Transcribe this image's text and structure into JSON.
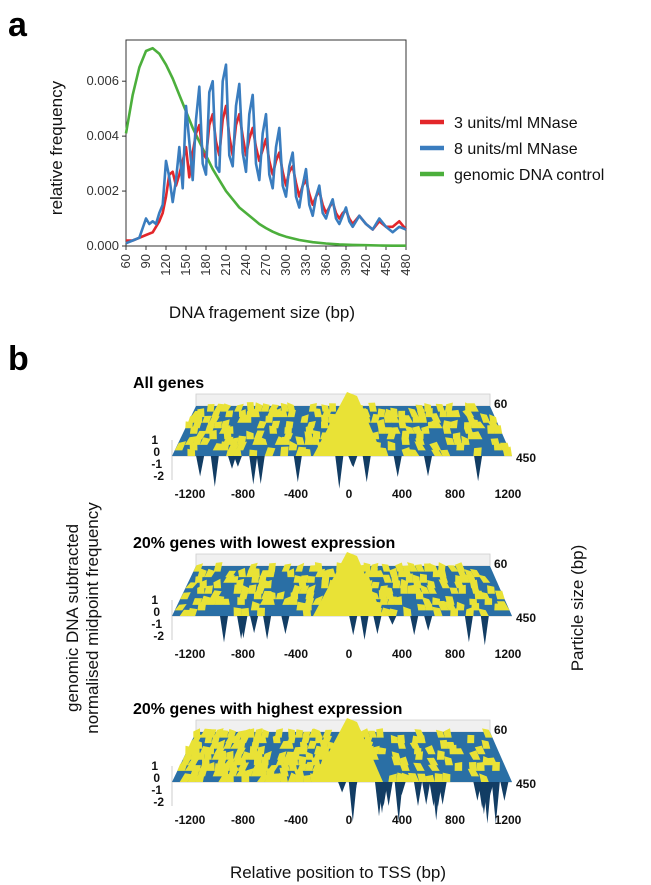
{
  "panel_a": {
    "letter": "a",
    "chart_data": {
      "type": "line",
      "xlabel": "DNA fragement size (bp)",
      "ylabel": "relative frequency",
      "xlim": [
        60,
        480
      ],
      "ylim": [
        0,
        0.0075
      ],
      "x_ticks": [
        "60",
        "90",
        "120",
        "150",
        "180",
        "210",
        "240",
        "270",
        "300",
        "330",
        "360",
        "390",
        "420",
        "450",
        "480"
      ],
      "y_ticks": [
        "0.000",
        "0.002",
        "0.004",
        "0.006"
      ],
      "legend_position": "right",
      "series": [
        {
          "name": "3 units/ml MNase",
          "color": "#e3262a",
          "x": [
            60,
            70,
            80,
            90,
            100,
            105,
            110,
            115,
            120,
            125,
            130,
            135,
            140,
            145,
            150,
            155,
            160,
            165,
            170,
            175,
            180,
            185,
            190,
            195,
            200,
            205,
            210,
            215,
            220,
            225,
            230,
            235,
            240,
            245,
            250,
            255,
            260,
            265,
            270,
            275,
            280,
            285,
            290,
            295,
            300,
            305,
            310,
            315,
            320,
            325,
            330,
            335,
            340,
            345,
            350,
            355,
            360,
            365,
            370,
            375,
            380,
            385,
            390,
            395,
            400,
            410,
            420,
            430,
            440,
            450,
            460,
            470,
            480
          ],
          "y": [
            0.0002,
            0.0002,
            0.0003,
            0.0004,
            0.0005,
            0.0007,
            0.0009,
            0.0012,
            0.0018,
            0.0026,
            0.0027,
            0.0022,
            0.0026,
            0.0031,
            0.0036,
            0.0025,
            0.0034,
            0.0041,
            0.0044,
            0.0034,
            0.0032,
            0.0044,
            0.0048,
            0.0038,
            0.0033,
            0.0046,
            0.0051,
            0.004,
            0.0033,
            0.0044,
            0.0048,
            0.004,
            0.0033,
            0.0039,
            0.0043,
            0.0036,
            0.0031,
            0.0035,
            0.0039,
            0.0031,
            0.0026,
            0.0031,
            0.0034,
            0.0027,
            0.0022,
            0.0027,
            0.0029,
            0.0023,
            0.0018,
            0.0022,
            0.0024,
            0.0019,
            0.0015,
            0.0018,
            0.002,
            0.0015,
            0.0012,
            0.0014,
            0.0016,
            0.0012,
            0.001,
            0.0012,
            0.0013,
            0.001,
            0.0008,
            0.0011,
            0.0008,
            0.0006,
            0.0009,
            0.0007,
            0.0007,
            0.0009,
            0.0006
          ]
        },
        {
          "name": "8 units/ml MNase",
          "color": "#3a7dbf",
          "x": [
            60,
            70,
            80,
            90,
            95,
            100,
            105,
            110,
            115,
            120,
            125,
            130,
            135,
            140,
            145,
            150,
            155,
            160,
            165,
            170,
            175,
            180,
            185,
            190,
            195,
            200,
            205,
            210,
            215,
            220,
            225,
            230,
            235,
            240,
            245,
            250,
            255,
            260,
            265,
            270,
            275,
            280,
            285,
            290,
            295,
            300,
            305,
            310,
            315,
            320,
            325,
            330,
            335,
            340,
            345,
            350,
            355,
            360,
            365,
            370,
            375,
            380,
            385,
            390,
            395,
            400,
            410,
            420,
            430,
            440,
            450,
            460,
            470,
            480
          ],
          "y": [
            0.0001,
            0.0002,
            0.0003,
            0.001,
            0.0008,
            0.0009,
            0.0008,
            0.0012,
            0.0015,
            0.0031,
            0.0025,
            0.0016,
            0.0024,
            0.0036,
            0.0021,
            0.0051,
            0.0038,
            0.0024,
            0.0046,
            0.0058,
            0.003,
            0.0026,
            0.0056,
            0.006,
            0.0029,
            0.0027,
            0.006,
            0.0066,
            0.0033,
            0.0029,
            0.0051,
            0.0059,
            0.0034,
            0.0027,
            0.0048,
            0.0055,
            0.003,
            0.0024,
            0.0041,
            0.0048,
            0.0026,
            0.0021,
            0.0036,
            0.0043,
            0.0022,
            0.0018,
            0.0029,
            0.0034,
            0.0018,
            0.0014,
            0.0022,
            0.0028,
            0.0015,
            0.0011,
            0.0018,
            0.0022,
            0.0012,
            0.001,
            0.0014,
            0.0017,
            0.001,
            0.0008,
            0.0011,
            0.0014,
            0.0009,
            0.0007,
            0.0011,
            0.0008,
            0.0006,
            0.001,
            0.0007,
            0.0005,
            0.0007,
            0.0006
          ]
        },
        {
          "name": "genomic DNA control",
          "color": "#4caf3c",
          "x": [
            60,
            70,
            80,
            90,
            100,
            110,
            120,
            130,
            140,
            150,
            160,
            170,
            180,
            190,
            200,
            210,
            220,
            230,
            240,
            250,
            260,
            270,
            280,
            290,
            300,
            320,
            340,
            360,
            380,
            400,
            420,
            440,
            460,
            480
          ],
          "y": [
            0.0041,
            0.0055,
            0.0065,
            0.0071,
            0.0072,
            0.007,
            0.0066,
            0.0061,
            0.0055,
            0.0049,
            0.0043,
            0.0038,
            0.0033,
            0.0028,
            0.0024,
            0.002,
            0.0017,
            0.0014,
            0.0012,
            0.001,
            0.0008,
            0.00065,
            0.00052,
            0.00042,
            0.00034,
            0.00022,
            0.00014,
            9e-05,
            6e-05,
            4e-05,
            3e-05,
            2e-05,
            1e-05,
            1e-05
          ]
        }
      ]
    }
  },
  "panel_b": {
    "letter": "b",
    "y_label_line1": "genomic DNA subtracted",
    "y_label_line2": "normalised midpoint frequency",
    "right_label": "Particle size (bp)",
    "x_label": "Relative position to TSS (bp)",
    "surfaces": [
      {
        "title": "All genes",
        "x_ticks": [
          "-1200",
          "-800",
          "-400",
          "0",
          "400",
          "800",
          "1200"
        ],
        "z_ticks": [
          "1",
          "0",
          "-1",
          "-2"
        ],
        "size_top": "60",
        "size_bottom": "450"
      },
      {
        "title": "20% genes with lowest expression",
        "x_ticks": [
          "-1200",
          "-800",
          "-400",
          "0",
          "400",
          "800",
          "1200"
        ],
        "z_ticks": [
          "1",
          "0",
          "-1",
          "-2"
        ],
        "size_top": "60",
        "size_bottom": "450"
      },
      {
        "title": "20% genes with highest expression",
        "x_ticks": [
          "-1200",
          "-800",
          "-400",
          "0",
          "400",
          "800",
          "1200"
        ],
        "z_ticks": [
          "1",
          "0",
          "-1",
          "-2"
        ],
        "size_top": "60",
        "size_bottom": "450"
      }
    ],
    "colors": {
      "positive": "#e9e236",
      "negative": "#2a6fa5",
      "deep": "#123d64"
    }
  }
}
